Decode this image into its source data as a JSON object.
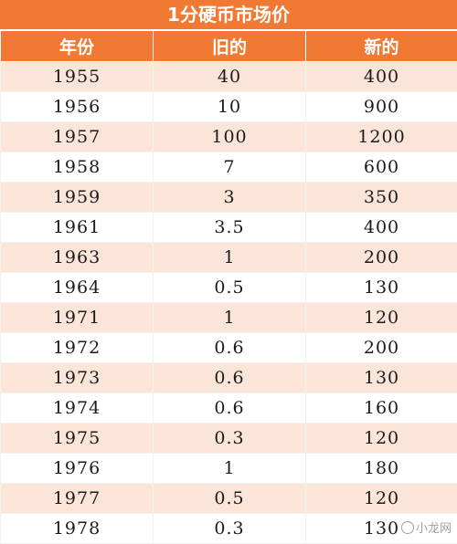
{
  "title": "1分硬币市场价",
  "columns": [
    "年份",
    "旧的",
    "新的"
  ],
  "rows": [
    [
      "1955",
      "40",
      "400"
    ],
    [
      "1956",
      "10",
      "900"
    ],
    [
      "1957",
      "100",
      "1200"
    ],
    [
      "1958",
      "7",
      "600"
    ],
    [
      "1959",
      "3",
      "350"
    ],
    [
      "1961",
      "3.5",
      "400"
    ],
    [
      "1963",
      "1",
      "200"
    ],
    [
      "1964",
      "0.5",
      "130"
    ],
    [
      "1971",
      "1",
      "120"
    ],
    [
      "1972",
      "0.6",
      "200"
    ],
    [
      "1973",
      "0.6",
      "130"
    ],
    [
      "1974",
      "0.6",
      "160"
    ],
    [
      "1975",
      "0.3",
      "120"
    ],
    [
      "1976",
      "1",
      "180"
    ],
    [
      "1977",
      "0.5",
      "120"
    ],
    [
      "1978",
      "0.3",
      "130"
    ]
  ],
  "watermark": "小龙网",
  "colors": {
    "header_bg": "#f07a34",
    "row_alt_bg": "#fbe4d8",
    "header_text": "#ffffff"
  }
}
